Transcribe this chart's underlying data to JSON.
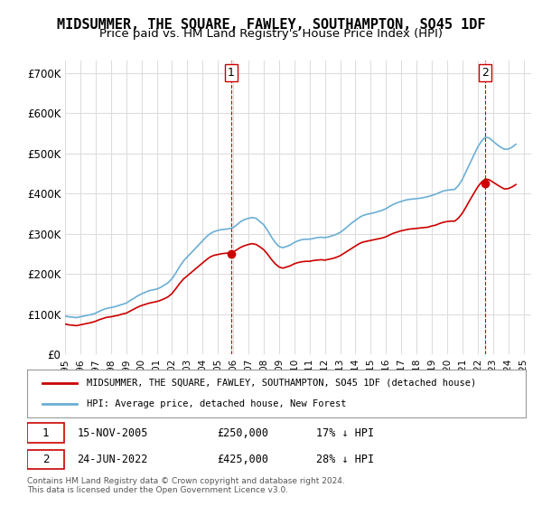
{
  "title": "MIDSUMMER, THE SQUARE, FAWLEY, SOUTHAMPTON, SO45 1DF",
  "subtitle": "Price paid vs. HM Land Registry's House Price Index (HPI)",
  "title_fontsize": 11,
  "subtitle_fontsize": 9.5,
  "ylabel_ticks": [
    "£0",
    "£100K",
    "£200K",
    "£300K",
    "£400K",
    "£500K",
    "£600K",
    "£700K"
  ],
  "ytick_vals": [
    0,
    100000,
    200000,
    300000,
    400000,
    500000,
    600000,
    700000
  ],
  "ylim": [
    0,
    730000
  ],
  "xlim_start": 1995.0,
  "xlim_end": 2025.5,
  "xtick_years": [
    1995,
    1996,
    1997,
    1998,
    1999,
    2000,
    2001,
    2002,
    2003,
    2004,
    2005,
    2006,
    2007,
    2008,
    2009,
    2010,
    2011,
    2012,
    2013,
    2014,
    2015,
    2016,
    2017,
    2018,
    2019,
    2020,
    2021,
    2022,
    2023,
    2024,
    2025
  ],
  "hpi_color": "#6baed6",
  "price_color": "#cc0000",
  "sale1_x": 2005.87,
  "sale1_y": 250000,
  "sale2_x": 2022.48,
  "sale2_y": 425000,
  "marker1_label": "1",
  "marker2_label": "2",
  "legend_line1": "MIDSUMMER, THE SQUARE, FAWLEY, SOUTHAMPTON, SO45 1DF (detached house)",
  "legend_line2": "HPI: Average price, detached house, New Forest",
  "table_row1": "1    15-NOV-2005         £250,000         17% ↓ HPI",
  "table_row2": "2    24-JUN-2022         £425,000         28% ↓ HPI",
  "footnote": "Contains HM Land Registry data © Crown copyright and database right 2024.\nThis data is licensed under the Open Government Licence v3.0.",
  "background_color": "#ffffff",
  "grid_color": "#dddddd",
  "hpi_data_x": [
    1995.0,
    1995.25,
    1995.5,
    1995.75,
    1996.0,
    1996.25,
    1996.5,
    1996.75,
    1997.0,
    1997.25,
    1997.5,
    1997.75,
    1998.0,
    1998.25,
    1998.5,
    1998.75,
    1999.0,
    1999.25,
    1999.5,
    1999.75,
    2000.0,
    2000.25,
    2000.5,
    2000.75,
    2001.0,
    2001.25,
    2001.5,
    2001.75,
    2002.0,
    2002.25,
    2002.5,
    2002.75,
    2003.0,
    2003.25,
    2003.5,
    2003.75,
    2004.0,
    2004.25,
    2004.5,
    2004.75,
    2005.0,
    2005.25,
    2005.5,
    2005.75,
    2006.0,
    2006.25,
    2006.5,
    2006.75,
    2007.0,
    2007.25,
    2007.5,
    2007.75,
    2008.0,
    2008.25,
    2008.5,
    2008.75,
    2009.0,
    2009.25,
    2009.5,
    2009.75,
    2010.0,
    2010.25,
    2010.5,
    2010.75,
    2011.0,
    2011.25,
    2011.5,
    2011.75,
    2012.0,
    2012.25,
    2012.5,
    2012.75,
    2013.0,
    2013.25,
    2013.5,
    2013.75,
    2014.0,
    2014.25,
    2014.5,
    2014.75,
    2015.0,
    2015.25,
    2015.5,
    2015.75,
    2016.0,
    2016.25,
    2016.5,
    2016.75,
    2017.0,
    2017.25,
    2017.5,
    2017.75,
    2018.0,
    2018.25,
    2018.5,
    2018.75,
    2019.0,
    2019.25,
    2019.5,
    2019.75,
    2020.0,
    2020.25,
    2020.5,
    2020.75,
    2021.0,
    2021.25,
    2021.5,
    2021.75,
    2022.0,
    2022.25,
    2022.5,
    2022.75,
    2023.0,
    2023.25,
    2023.5,
    2023.75,
    2024.0,
    2024.25,
    2024.5
  ],
  "hpi_data_y": [
    95000,
    93000,
    92000,
    91000,
    93000,
    95000,
    97000,
    99000,
    102000,
    107000,
    111000,
    114000,
    116000,
    118000,
    121000,
    124000,
    127000,
    133000,
    139000,
    145000,
    150000,
    154000,
    158000,
    160000,
    162000,
    166000,
    172000,
    178000,
    188000,
    202000,
    218000,
    232000,
    242000,
    252000,
    262000,
    272000,
    282000,
    292000,
    300000,
    305000,
    308000,
    310000,
    311000,
    312000,
    315000,
    322000,
    330000,
    335000,
    338000,
    340000,
    338000,
    330000,
    322000,
    308000,
    292000,
    278000,
    268000,
    265000,
    268000,
    272000,
    278000,
    282000,
    285000,
    286000,
    286000,
    288000,
    290000,
    291000,
    290000,
    292000,
    295000,
    298000,
    303000,
    310000,
    318000,
    326000,
    333000,
    340000,
    345000,
    348000,
    350000,
    352000,
    355000,
    358000,
    362000,
    368000,
    373000,
    377000,
    380000,
    383000,
    385000,
    386000,
    387000,
    388000,
    390000,
    392000,
    395000,
    398000,
    402000,
    406000,
    408000,
    409000,
    410000,
    420000,
    435000,
    455000,
    475000,
    495000,
    515000,
    530000,
    540000,
    538000,
    530000,
    522000,
    515000,
    510000,
    510000,
    515000,
    522000
  ],
  "price_data_x": [
    1995.0,
    1995.25,
    1995.5,
    1995.75,
    1996.0,
    1996.25,
    1996.5,
    1996.75,
    1997.0,
    1997.25,
    1997.5,
    1997.75,
    1998.0,
    1998.25,
    1998.5,
    1998.75,
    1999.0,
    1999.25,
    1999.5,
    1999.75,
    2000.0,
    2000.25,
    2000.5,
    2000.75,
    2001.0,
    2001.25,
    2001.5,
    2001.75,
    2002.0,
    2002.25,
    2002.5,
    2002.75,
    2003.0,
    2003.25,
    2003.5,
    2003.75,
    2004.0,
    2004.25,
    2004.5,
    2004.75,
    2005.0,
    2005.25,
    2005.5,
    2005.75,
    2006.0,
    2006.25,
    2006.5,
    2006.75,
    2007.0,
    2007.25,
    2007.5,
    2007.75,
    2008.0,
    2008.25,
    2008.5,
    2008.75,
    2009.0,
    2009.25,
    2009.5,
    2009.75,
    2010.0,
    2010.25,
    2010.5,
    2010.75,
    2011.0,
    2011.25,
    2011.5,
    2011.75,
    2012.0,
    2012.25,
    2012.5,
    2012.75,
    2013.0,
    2013.25,
    2013.5,
    2013.75,
    2014.0,
    2014.25,
    2014.5,
    2014.75,
    2015.0,
    2015.25,
    2015.5,
    2015.75,
    2016.0,
    2016.25,
    2016.5,
    2016.75,
    2017.0,
    2017.25,
    2017.5,
    2017.75,
    2018.0,
    2018.25,
    2018.5,
    2018.75,
    2019.0,
    2019.25,
    2019.5,
    2019.75,
    2020.0,
    2020.25,
    2020.5,
    2020.75,
    2021.0,
    2021.25,
    2021.5,
    2021.75,
    2022.0,
    2022.25,
    2022.5,
    2022.75,
    2023.0,
    2023.25,
    2023.5,
    2023.75,
    2024.0,
    2024.25,
    2024.5
  ],
  "price_data_y": [
    75000,
    73000,
    72000,
    71000,
    73000,
    75000,
    77000,
    79000,
    82000,
    86000,
    89000,
    92000,
    93000,
    95000,
    97000,
    100000,
    102000,
    107000,
    112000,
    117000,
    121000,
    124000,
    127000,
    129000,
    131000,
    134000,
    138000,
    143000,
    151000,
    163000,
    176000,
    187000,
    195000,
    203000,
    211000,
    219000,
    227000,
    235000,
    242000,
    246000,
    248000,
    250000,
    251000,
    252000,
    254000,
    260000,
    266000,
    270000,
    273000,
    275000,
    273000,
    267000,
    260000,
    249000,
    236000,
    225000,
    217000,
    214000,
    217000,
    220000,
    225000,
    228000,
    230000,
    231000,
    231000,
    233000,
    234000,
    235000,
    234000,
    236000,
    238000,
    241000,
    245000,
    251000,
    257000,
    263000,
    269000,
    275000,
    279000,
    281000,
    283000,
    285000,
    287000,
    289000,
    292000,
    297000,
    301000,
    304000,
    307000,
    309000,
    311000,
    312000,
    313000,
    314000,
    315000,
    316000,
    319000,
    321000,
    325000,
    328000,
    330000,
    331000,
    331000,
    339000,
    351000,
    367000,
    384000,
    400000,
    416000,
    428000,
    436000,
    434000,
    428000,
    422000,
    416000,
    411000,
    412000,
    416000,
    422000
  ]
}
